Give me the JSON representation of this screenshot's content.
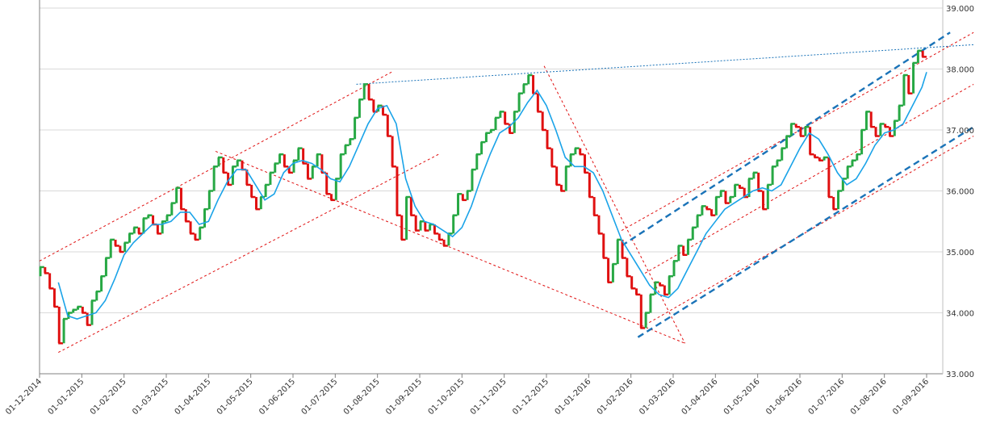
{
  "chart_data": {
    "type": "candlestick",
    "title": "",
    "xlabel": "",
    "ylabel": "",
    "y_axis_position": "right",
    "ylim": [
      33.0,
      39.0
    ],
    "y_ticks": [
      "33.000",
      "34.000",
      "35.000",
      "36.000",
      "37.000",
      "38.000",
      "39.000"
    ],
    "x_ticks": [
      "01-12-2014",
      "01-01-2015",
      "01-02-2015",
      "01-03-2015",
      "01-04-2015",
      "01-05-2015",
      "01-06-2015",
      "01-07-2015",
      "01-08-2015",
      "01-09-2015",
      "01-10-2015",
      "01-11-2015",
      "01-12-2015",
      "01-01-2016",
      "01-02-2016",
      "01-03-2016",
      "01-04-2016",
      "01-05-2016",
      "01-06-2016",
      "01-07-2016",
      "01-08-2016",
      "01-09-2016"
    ],
    "grid": "horizontal",
    "colors": {
      "up": "#27a844",
      "down": "#e01010",
      "moving_average": "#1aa3e8",
      "trend_red": "#e01010",
      "trend_blue": "#1a73b8"
    },
    "close_series": [
      [
        0,
        34.6
      ],
      [
        2,
        34.75
      ],
      [
        4,
        34.65
      ],
      [
        6,
        34.4
      ],
      [
        8,
        34.1
      ],
      [
        10,
        33.5
      ],
      [
        12,
        33.9
      ],
      [
        14,
        34.0
      ],
      [
        16,
        34.05
      ],
      [
        18,
        34.1
      ],
      [
        20,
        34.0
      ],
      [
        22,
        33.8
      ],
      [
        24,
        34.2
      ],
      [
        26,
        34.35
      ],
      [
        28,
        34.6
      ],
      [
        30,
        34.9
      ],
      [
        32,
        35.2
      ],
      [
        34,
        35.1
      ],
      [
        36,
        35.0
      ],
      [
        38,
        35.15
      ],
      [
        40,
        35.3
      ],
      [
        42,
        35.4
      ],
      [
        44,
        35.3
      ],
      [
        46,
        35.55
      ],
      [
        48,
        35.6
      ],
      [
        50,
        35.45
      ],
      [
        52,
        35.3
      ],
      [
        54,
        35.5
      ],
      [
        56,
        35.6
      ],
      [
        58,
        35.8
      ],
      [
        60,
        36.05
      ],
      [
        62,
        35.7
      ],
      [
        64,
        35.5
      ],
      [
        66,
        35.3
      ],
      [
        68,
        35.2
      ],
      [
        70,
        35.4
      ],
      [
        72,
        35.7
      ],
      [
        74,
        36.0
      ],
      [
        76,
        36.4
      ],
      [
        78,
        36.55
      ],
      [
        80,
        36.3
      ],
      [
        82,
        36.1
      ],
      [
        84,
        36.4
      ],
      [
        86,
        36.5
      ],
      [
        88,
        36.35
      ],
      [
        90,
        36.1
      ],
      [
        92,
        35.9
      ],
      [
        94,
        35.7
      ],
      [
        96,
        35.9
      ],
      [
        98,
        36.1
      ],
      [
        100,
        36.3
      ],
      [
        102,
        36.45
      ],
      [
        104,
        36.6
      ],
      [
        106,
        36.4
      ],
      [
        108,
        36.3
      ],
      [
        110,
        36.5
      ],
      [
        112,
        36.7
      ],
      [
        114,
        36.45
      ],
      [
        116,
        36.2
      ],
      [
        118,
        36.4
      ],
      [
        120,
        36.6
      ],
      [
        122,
        36.3
      ],
      [
        124,
        35.95
      ],
      [
        126,
        35.85
      ],
      [
        128,
        36.2
      ],
      [
        130,
        36.6
      ],
      [
        132,
        36.75
      ],
      [
        134,
        36.85
      ],
      [
        136,
        37.2
      ],
      [
        138,
        37.5
      ],
      [
        140,
        37.75
      ],
      [
        142,
        37.5
      ],
      [
        144,
        37.3
      ],
      [
        146,
        37.4
      ],
      [
        148,
        37.25
      ],
      [
        150,
        36.9
      ],
      [
        152,
        36.4
      ],
      [
        154,
        35.6
      ],
      [
        156,
        35.2
      ],
      [
        158,
        35.9
      ],
      [
        160,
        35.6
      ],
      [
        162,
        35.35
      ],
      [
        164,
        35.5
      ],
      [
        166,
        35.35
      ],
      [
        168,
        35.45
      ],
      [
        170,
        35.3
      ],
      [
        172,
        35.2
      ],
      [
        174,
        35.1
      ],
      [
        176,
        35.3
      ],
      [
        178,
        35.6
      ],
      [
        180,
        35.95
      ],
      [
        182,
        35.85
      ],
      [
        184,
        36.0
      ],
      [
        186,
        36.35
      ],
      [
        188,
        36.6
      ],
      [
        190,
        36.8
      ],
      [
        192,
        36.95
      ],
      [
        194,
        37.0
      ],
      [
        196,
        37.2
      ],
      [
        198,
        37.3
      ],
      [
        200,
        37.1
      ],
      [
        202,
        36.95
      ],
      [
        204,
        37.3
      ],
      [
        206,
        37.6
      ],
      [
        208,
        37.75
      ],
      [
        210,
        37.9
      ],
      [
        212,
        37.6
      ],
      [
        214,
        37.3
      ],
      [
        216,
        37.0
      ],
      [
        218,
        36.7
      ],
      [
        220,
        36.4
      ],
      [
        222,
        36.1
      ],
      [
        224,
        36.0
      ],
      [
        226,
        36.4
      ],
      [
        228,
        36.6
      ],
      [
        230,
        36.7
      ],
      [
        232,
        36.6
      ],
      [
        234,
        36.3
      ],
      [
        236,
        35.9
      ],
      [
        238,
        35.6
      ],
      [
        240,
        35.3
      ],
      [
        242,
        34.9
      ],
      [
        244,
        34.5
      ],
      [
        246,
        34.8
      ],
      [
        248,
        35.2
      ],
      [
        250,
        34.9
      ],
      [
        252,
        34.6
      ],
      [
        254,
        34.4
      ],
      [
        256,
        34.3
      ],
      [
        258,
        33.75
      ],
      [
        260,
        34.0
      ],
      [
        262,
        34.3
      ],
      [
        264,
        34.5
      ],
      [
        266,
        34.45
      ],
      [
        268,
        34.3
      ],
      [
        270,
        34.6
      ],
      [
        272,
        34.85
      ],
      [
        274,
        35.1
      ],
      [
        276,
        34.95
      ],
      [
        278,
        35.2
      ],
      [
        280,
        35.4
      ],
      [
        282,
        35.6
      ],
      [
        284,
        35.75
      ],
      [
        286,
        35.7
      ],
      [
        288,
        35.6
      ],
      [
        290,
        35.9
      ],
      [
        292,
        36.0
      ],
      [
        294,
        35.8
      ],
      [
        296,
        35.9
      ],
      [
        298,
        36.1
      ],
      [
        300,
        36.05
      ],
      [
        302,
        35.9
      ],
      [
        304,
        36.2
      ],
      [
        306,
        36.3
      ],
      [
        308,
        36.0
      ],
      [
        310,
        35.7
      ],
      [
        312,
        36.1
      ],
      [
        314,
        36.4
      ],
      [
        316,
        36.5
      ],
      [
        318,
        36.7
      ],
      [
        320,
        36.9
      ],
      [
        322,
        37.1
      ],
      [
        324,
        37.05
      ],
      [
        326,
        36.9
      ],
      [
        328,
        37.05
      ],
      [
        330,
        36.6
      ],
      [
        332,
        36.55
      ],
      [
        334,
        36.5
      ],
      [
        336,
        36.55
      ],
      [
        338,
        35.9
      ],
      [
        340,
        35.7
      ],
      [
        342,
        36.0
      ],
      [
        344,
        36.2
      ],
      [
        346,
        36.4
      ],
      [
        348,
        36.5
      ],
      [
        350,
        36.6
      ],
      [
        352,
        37.0
      ],
      [
        354,
        37.3
      ],
      [
        356,
        37.05
      ],
      [
        358,
        36.9
      ],
      [
        360,
        37.1
      ],
      [
        362,
        37.05
      ],
      [
        364,
        36.9
      ],
      [
        366,
        37.15
      ],
      [
        368,
        37.4
      ],
      [
        370,
        37.9
      ],
      [
        372,
        37.6
      ],
      [
        374,
        38.1
      ],
      [
        376,
        38.3
      ],
      [
        378,
        38.2
      ]
    ],
    "moving_average": [
      [
        8,
        34.5
      ],
      [
        12,
        33.95
      ],
      [
        16,
        33.9
      ],
      [
        20,
        33.95
      ],
      [
        24,
        34.0
      ],
      [
        28,
        34.2
      ],
      [
        32,
        34.55
      ],
      [
        36,
        34.95
      ],
      [
        40,
        35.15
      ],
      [
        44,
        35.3
      ],
      [
        48,
        35.45
      ],
      [
        52,
        35.45
      ],
      [
        56,
        35.5
      ],
      [
        60,
        35.65
      ],
      [
        64,
        35.65
      ],
      [
        68,
        35.45
      ],
      [
        72,
        35.5
      ],
      [
        76,
        35.85
      ],
      [
        80,
        36.15
      ],
      [
        84,
        36.35
      ],
      [
        88,
        36.35
      ],
      [
        92,
        36.1
      ],
      [
        96,
        35.85
      ],
      [
        100,
        35.95
      ],
      [
        104,
        36.3
      ],
      [
        108,
        36.45
      ],
      [
        112,
        36.5
      ],
      [
        116,
        36.45
      ],
      [
        120,
        36.35
      ],
      [
        124,
        36.2
      ],
      [
        128,
        36.15
      ],
      [
        132,
        36.4
      ],
      [
        136,
        36.75
      ],
      [
        140,
        37.1
      ],
      [
        144,
        37.35
      ],
      [
        148,
        37.4
      ],
      [
        152,
        37.1
      ],
      [
        156,
        36.2
      ],
      [
        160,
        35.75
      ],
      [
        164,
        35.5
      ],
      [
        168,
        35.45
      ],
      [
        172,
        35.35
      ],
      [
        176,
        35.25
      ],
      [
        180,
        35.4
      ],
      [
        184,
        35.75
      ],
      [
        188,
        36.2
      ],
      [
        192,
        36.6
      ],
      [
        196,
        36.95
      ],
      [
        200,
        37.05
      ],
      [
        204,
        37.2
      ],
      [
        208,
        37.45
      ],
      [
        212,
        37.65
      ],
      [
        216,
        37.4
      ],
      [
        220,
        37.0
      ],
      [
        224,
        36.55
      ],
      [
        228,
        36.4
      ],
      [
        232,
        36.4
      ],
      [
        236,
        36.3
      ],
      [
        240,
        36.0
      ],
      [
        244,
        35.6
      ],
      [
        248,
        35.2
      ],
      [
        252,
        34.95
      ],
      [
        256,
        34.7
      ],
      [
        260,
        34.45
      ],
      [
        264,
        34.3
      ],
      [
        268,
        34.25
      ],
      [
        272,
        34.4
      ],
      [
        276,
        34.7
      ],
      [
        280,
        35.0
      ],
      [
        284,
        35.3
      ],
      [
        288,
        35.5
      ],
      [
        292,
        35.7
      ],
      [
        296,
        35.8
      ],
      [
        300,
        35.9
      ],
      [
        304,
        36.0
      ],
      [
        308,
        36.05
      ],
      [
        312,
        36.0
      ],
      [
        316,
        36.1
      ],
      [
        320,
        36.4
      ],
      [
        324,
        36.7
      ],
      [
        328,
        36.95
      ],
      [
        332,
        36.85
      ],
      [
        336,
        36.6
      ],
      [
        340,
        36.3
      ],
      [
        344,
        36.1
      ],
      [
        348,
        36.2
      ],
      [
        352,
        36.45
      ],
      [
        356,
        36.75
      ],
      [
        360,
        36.95
      ],
      [
        364,
        37.0
      ],
      [
        368,
        37.1
      ],
      [
        372,
        37.4
      ],
      [
        376,
        37.7
      ],
      [
        378,
        37.95
      ]
    ],
    "trend_lines": [
      {
        "color": "red",
        "style": "dashed",
        "points": [
          [
            0,
            34.85
          ],
          [
            150,
            37.95
          ]
        ]
      },
      {
        "color": "red",
        "style": "dashed",
        "points": [
          [
            8,
            33.35
          ],
          [
            170,
            36.6
          ]
        ]
      },
      {
        "color": "red",
        "style": "dashed",
        "points": [
          [
            75,
            36.65
          ],
          [
            275,
            33.5
          ]
        ]
      },
      {
        "color": "red",
        "style": "dashed",
        "points": [
          [
            215,
            38.05
          ],
          [
            275,
            33.5
          ]
        ]
      },
      {
        "color": "red",
        "style": "dashed",
        "points": [
          [
            248,
            35.35
          ],
          [
            398,
            38.6
          ]
        ]
      },
      {
        "color": "red",
        "style": "dashed",
        "points": [
          [
            258,
            33.8
          ],
          [
            398,
            36.9
          ]
        ]
      },
      {
        "color": "red",
        "style": "dashed",
        "points": [
          [
            258,
            34.65
          ],
          [
            398,
            37.75
          ]
        ]
      },
      {
        "color": "blue",
        "style": "dotted",
        "points": [
          [
            135,
            37.75
          ],
          [
            398,
            38.4
          ]
        ]
      },
      {
        "color": "blue",
        "style": "dashed-thick",
        "points": [
          [
            248,
            35.1
          ],
          [
            388,
            38.6
          ]
        ]
      },
      {
        "color": "blue",
        "style": "dashed-thick",
        "points": [
          [
            255,
            33.6
          ],
          [
            398,
            37.05
          ]
        ]
      }
    ]
  }
}
